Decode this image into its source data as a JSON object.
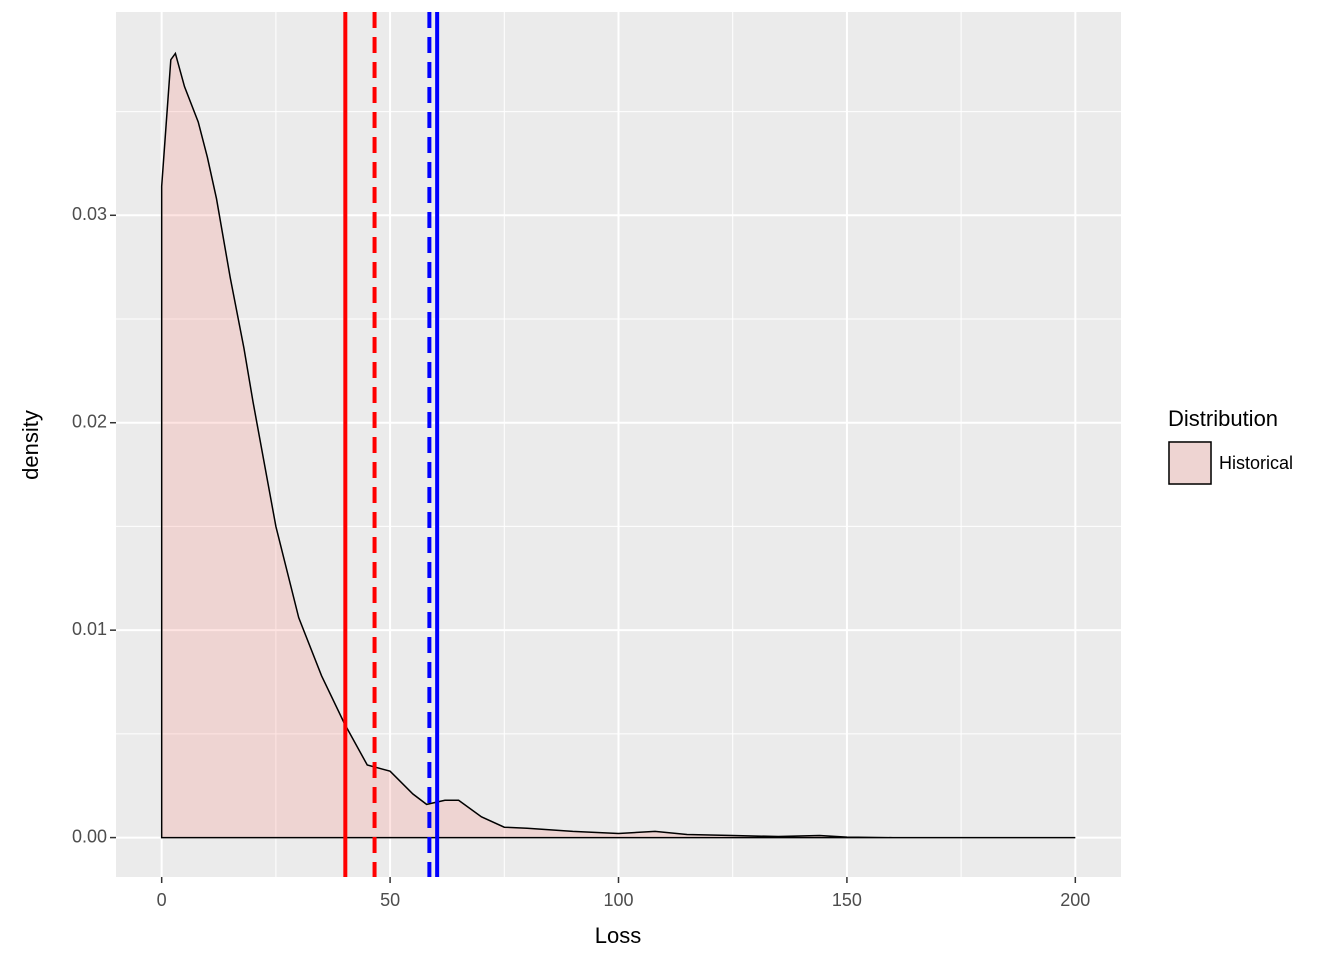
{
  "chart_data": {
    "type": "density",
    "x_label": "Loss",
    "y_label": "density",
    "x": [
      0,
      0,
      2,
      3,
      5,
      8,
      10,
      12,
      15,
      18,
      20,
      25,
      30,
      35,
      40,
      45,
      50,
      55,
      58,
      62,
      65,
      70,
      75,
      80,
      90,
      100,
      108,
      115,
      125,
      135,
      144,
      150,
      160,
      200
    ],
    "series": [
      {
        "name": "Historical",
        "color": "#F8766D",
        "fill_opacity": 0.2,
        "outline": "#000000",
        "values": [
          0,
          0.0314,
          0.0375,
          0.0378,
          0.0362,
          0.0345,
          0.0328,
          0.0308,
          0.027,
          0.0236,
          0.021,
          0.015,
          0.0106,
          0.0078,
          0.0055,
          0.0035,
          0.0032,
          0.0021,
          0.0016,
          0.0018,
          0.0018,
          0.001,
          0.0005,
          0.00045,
          0.0003,
          0.0002,
          0.0003,
          0.00015,
          0.0001,
          5e-05,
          0.0001,
          2e-05,
          0,
          0
        ]
      }
    ],
    "vlines": [
      {
        "x": 40.2,
        "color": "#FF0000",
        "linetype": "solid"
      },
      {
        "x": 46.6,
        "color": "#FF0000",
        "linetype": "dashed"
      },
      {
        "x": 58.6,
        "color": "#0000FF",
        "linetype": "dashed"
      },
      {
        "x": 60.3,
        "color": "#0000FF",
        "linetype": "solid"
      }
    ],
    "xlim": [
      -10,
      210
    ],
    "ylim": [
      -0.0019,
      0.0398
    ],
    "xticks": [
      0,
      50,
      100,
      150,
      200
    ],
    "yticks": [
      {
        "value": 0,
        "label": "0.00"
      },
      0.01,
      0.02,
      0.03
    ],
    "minor_xticks": [
      25,
      75,
      125,
      175
    ],
    "minor_yticks": [
      0.005,
      0.015,
      0.025,
      0.035
    ],
    "grid": true,
    "legend_title": "Distribution",
    "legend_position": "right"
  }
}
